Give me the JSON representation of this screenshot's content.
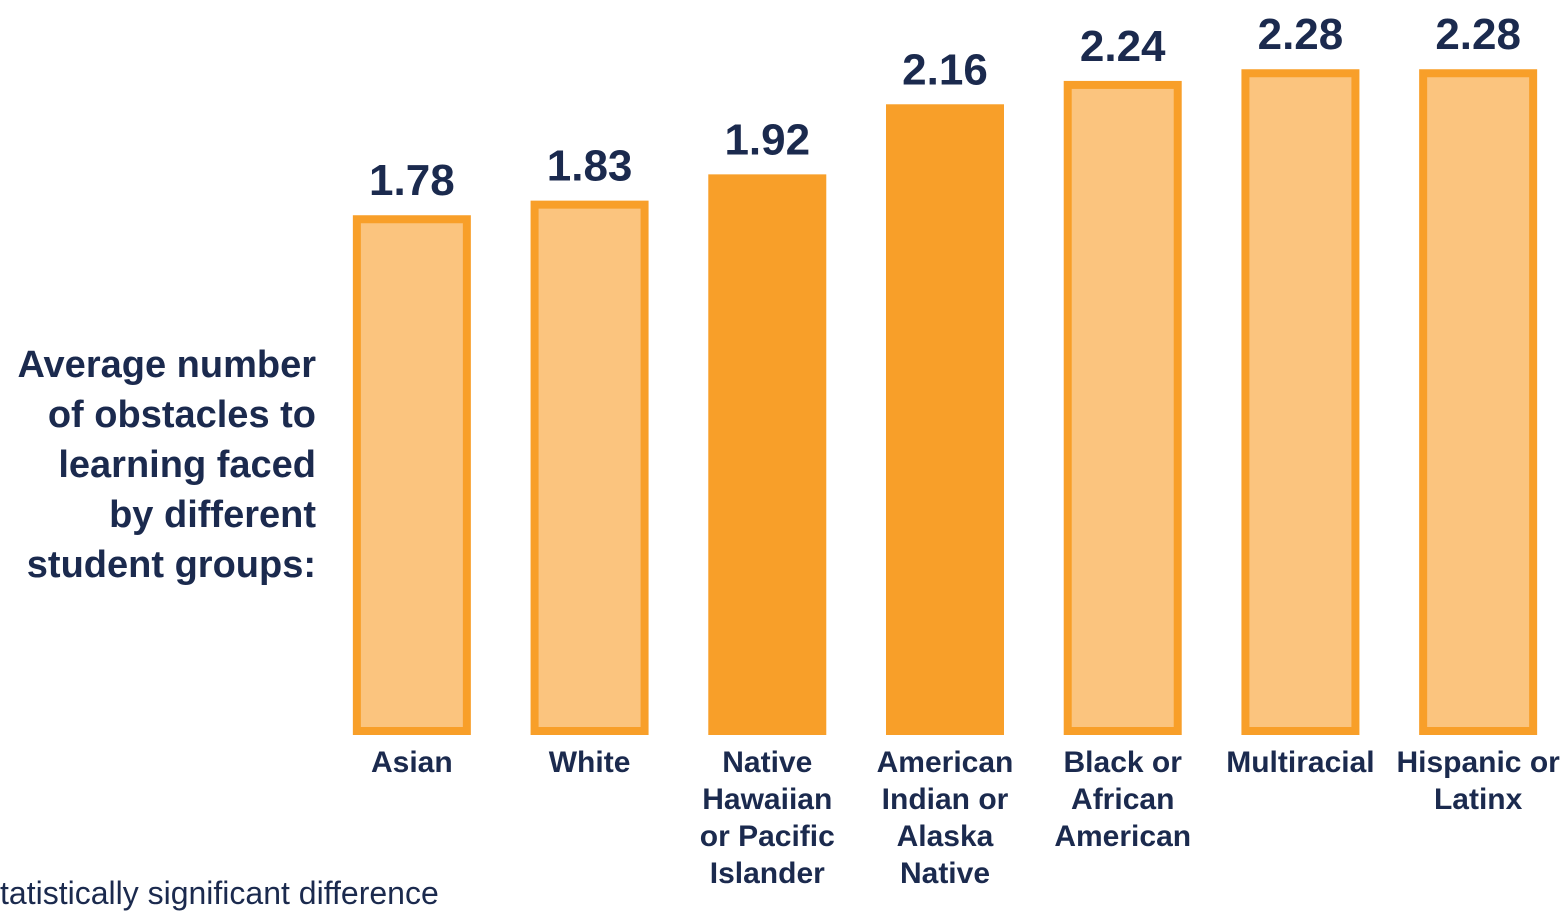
{
  "chart_data": {
    "type": "bar",
    "axis_title": [
      "Average number",
      "of obstacles to",
      "learning faced",
      "by different",
      "student groups:"
    ],
    "categories": [
      [
        "Asian"
      ],
      [
        "White"
      ],
      [
        "Native",
        "Hawaiian",
        "or Pacific",
        "Islander"
      ],
      [
        "American",
        "Indian or",
        "Alaska",
        "Native"
      ],
      [
        "Black or",
        "African",
        "American"
      ],
      [
        "Multiracial"
      ],
      [
        "Hispanic or",
        "Latinx"
      ]
    ],
    "values": [
      1.78,
      1.83,
      1.92,
      2.16,
      2.24,
      2.28,
      2.28
    ],
    "significant": [
      false,
      false,
      true,
      true,
      false,
      false,
      false
    ],
    "color": "#f89f29",
    "light_color": "#fbc47e",
    "ylim": [
      0,
      2.5
    ],
    "note": "tatistically significant difference"
  }
}
